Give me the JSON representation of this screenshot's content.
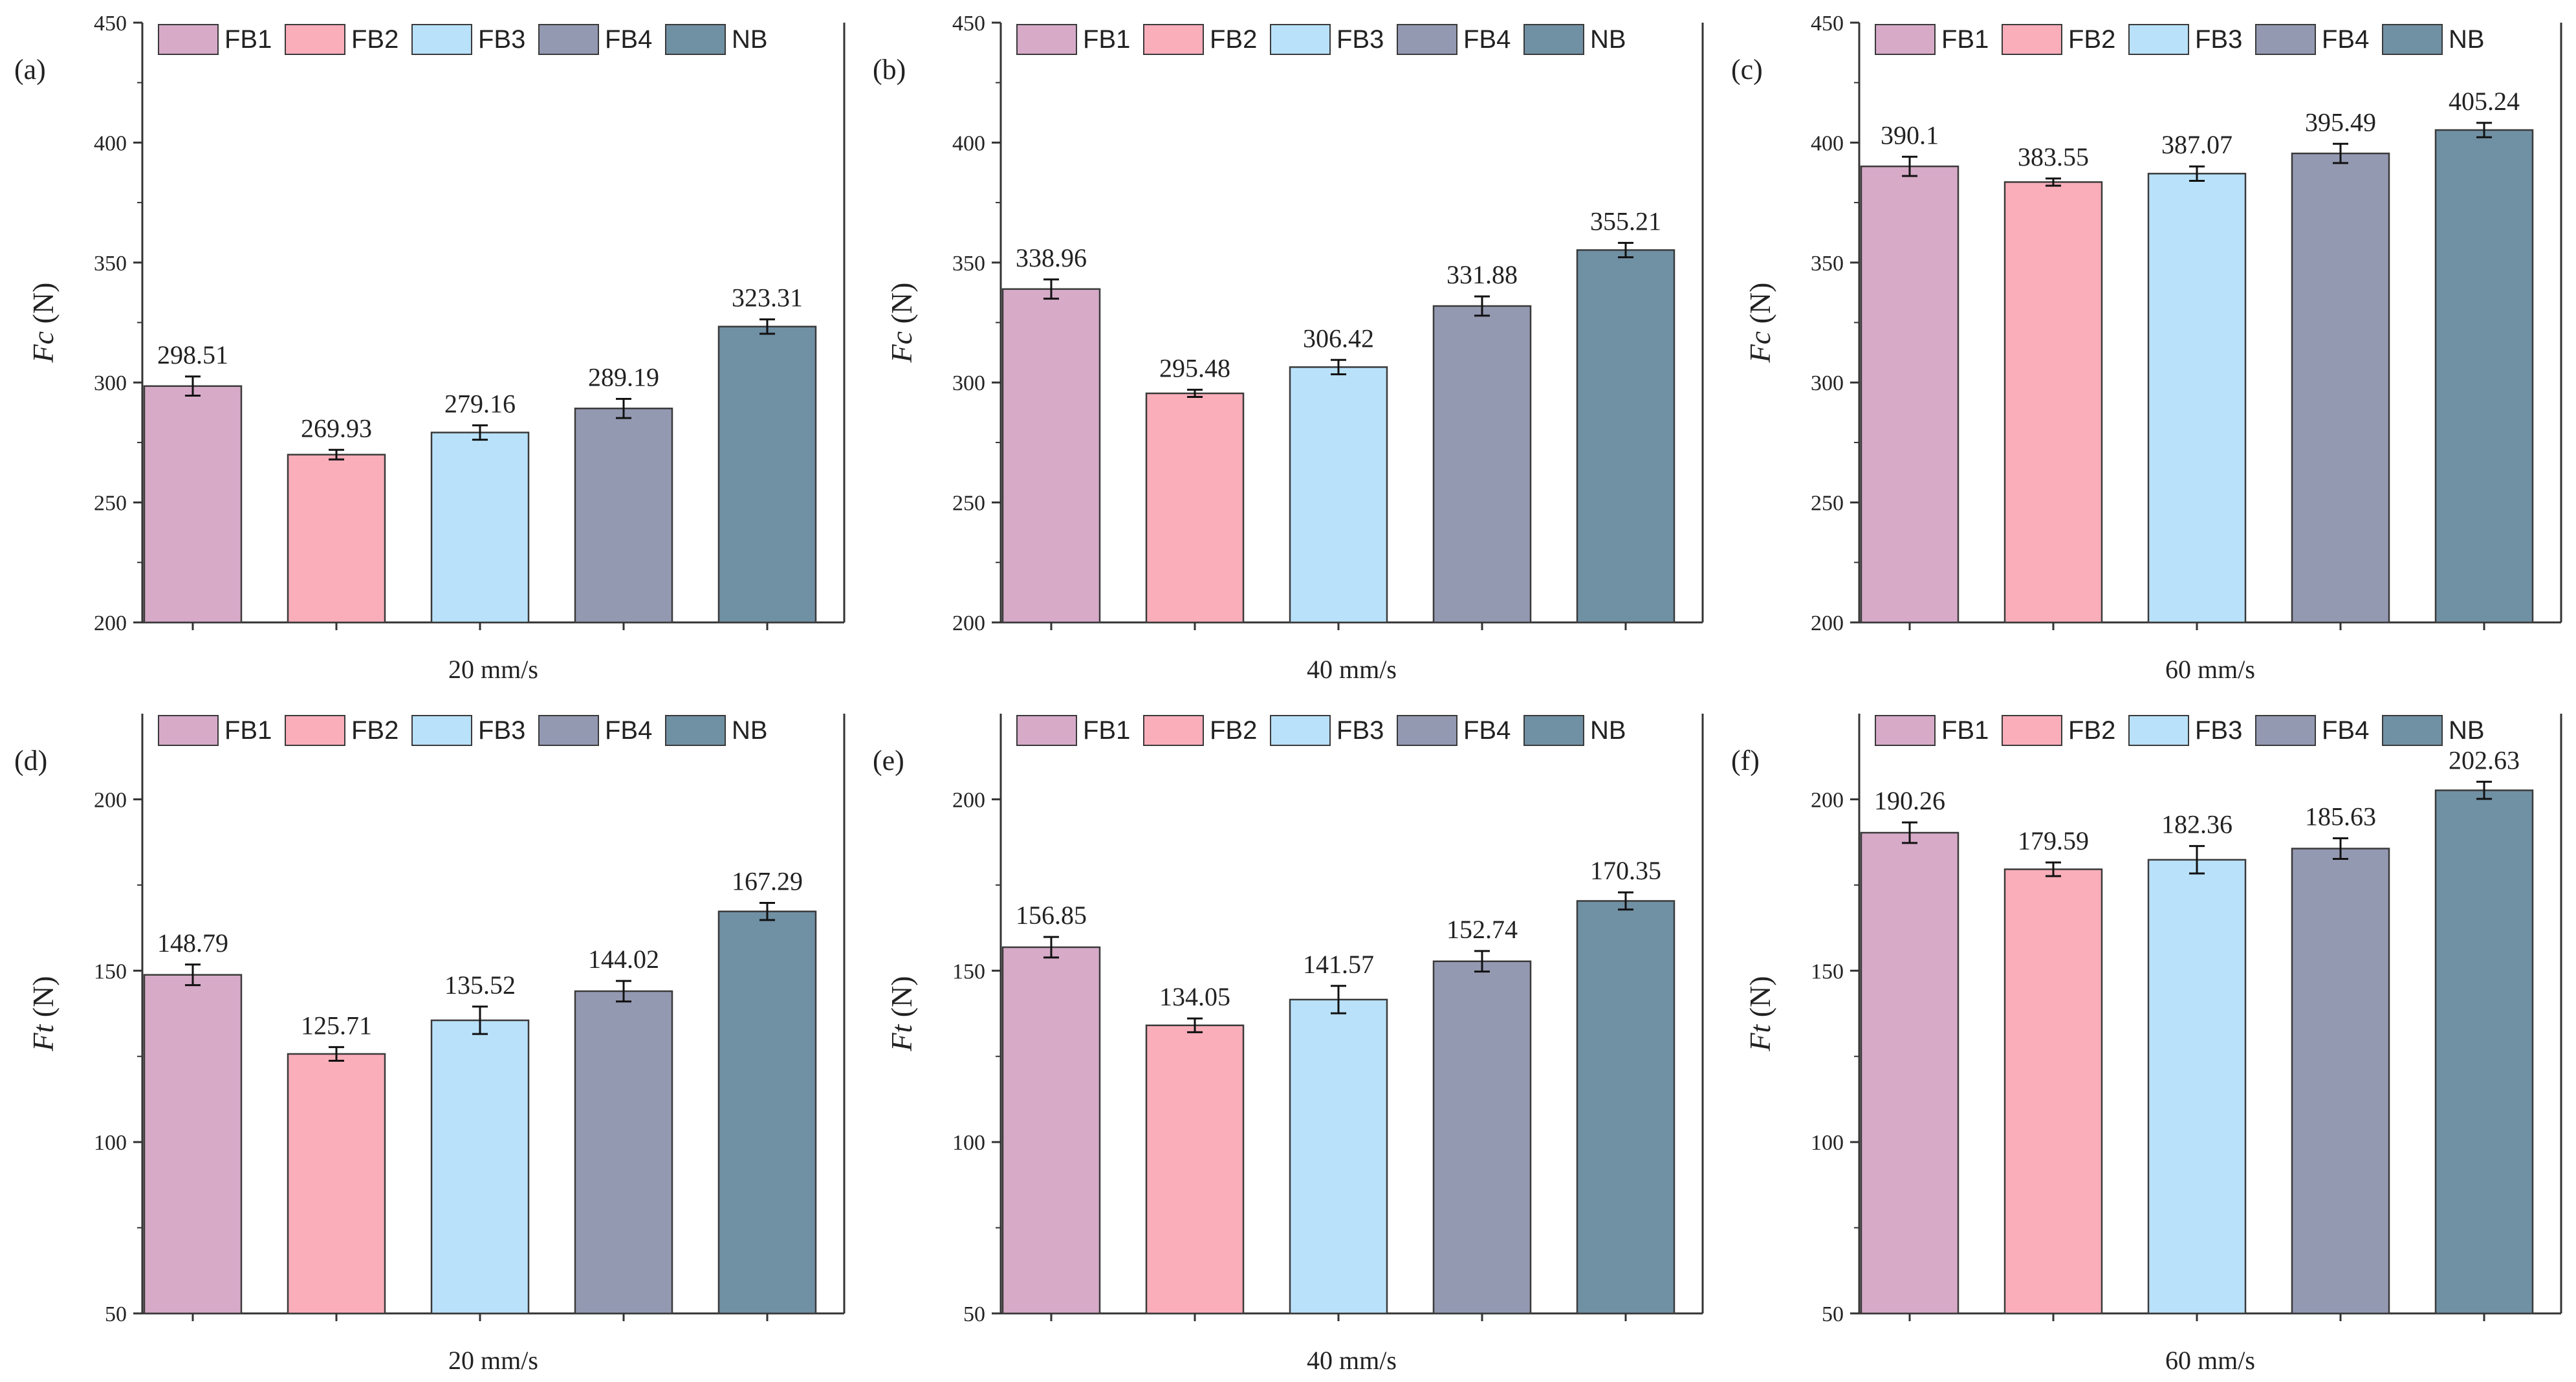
{
  "colors": {
    "FB1": "#d7aac8",
    "FB2": "#f9aeba",
    "FB3": "#b9e1fa",
    "FB4": "#9499b2",
    "NB": "#7090a4",
    "axis": "#333333",
    "bar_edge": "#3a3a3a"
  },
  "chart_data": [
    {
      "type": "bar",
      "panel": "(a)",
      "categories": [
        "FB1",
        "FB2",
        "FB3",
        "FB4",
        "NB"
      ],
      "values": [
        298.51,
        269.93,
        279.16,
        289.19,
        323.31
      ],
      "value_labels": [
        "298.51",
        "269.93",
        "279.16",
        "289.19",
        "323.31"
      ],
      "errors": [
        4,
        2,
        3,
        4,
        3
      ],
      "xlabel": "20 mm/s",
      "ylabel_main": "Fc",
      "ylabel_unit": " (N)",
      "ylim": [
        200,
        450
      ],
      "yticks": [
        200,
        250,
        300,
        350,
        400,
        450
      ],
      "legend": [
        "FB1",
        "FB2",
        "FB3",
        "FB4",
        "NB"
      ]
    },
    {
      "type": "bar",
      "panel": "(b)",
      "categories": [
        "FB1",
        "FB2",
        "FB3",
        "FB4",
        "NB"
      ],
      "values": [
        338.96,
        295.48,
        306.42,
        331.88,
        355.21
      ],
      "value_labels": [
        "338.96",
        "295.48",
        "306.42",
        "331.88",
        "355.21"
      ],
      "errors": [
        4,
        1.5,
        3,
        4,
        3
      ],
      "xlabel": "40 mm/s",
      "ylabel_main": "Fc",
      "ylabel_unit": " (N)",
      "ylim": [
        200,
        450
      ],
      "yticks": [
        200,
        250,
        300,
        350,
        400,
        450
      ],
      "legend": [
        "FB1",
        "FB2",
        "FB3",
        "FB4",
        "NB"
      ]
    },
    {
      "type": "bar",
      "panel": "(c)",
      "categories": [
        "FB1",
        "FB2",
        "FB3",
        "FB4",
        "NB"
      ],
      "values": [
        390.1,
        383.55,
        387.07,
        395.49,
        405.24
      ],
      "value_labels": [
        "390.1",
        "383.55",
        "387.07",
        "395.49",
        "405.24"
      ],
      "errors": [
        4,
        1.5,
        3,
        4,
        3
      ],
      "xlabel": "60 mm/s",
      "ylabel_main": "Fc",
      "ylabel_unit": " (N)",
      "ylim": [
        200,
        450
      ],
      "yticks": [
        200,
        250,
        300,
        350,
        400,
        450
      ],
      "legend": [
        "FB1",
        "FB2",
        "FB3",
        "FB4",
        "NB"
      ]
    },
    {
      "type": "bar",
      "panel": "(d)",
      "categories": [
        "FB1",
        "FB2",
        "FB3",
        "FB4",
        "NB"
      ],
      "values": [
        148.79,
        125.71,
        135.52,
        144.02,
        167.29
      ],
      "value_labels": [
        "148.79",
        "125.71",
        "135.52",
        "144.02",
        "167.29"
      ],
      "errors": [
        3,
        2,
        4,
        3,
        2.5
      ],
      "xlabel": "20 mm/s",
      "ylabel_main": "Ft",
      "ylabel_unit": " (N)",
      "ylim": [
        50,
        225
      ],
      "yticks": [
        50,
        100,
        150,
        200
      ],
      "legend": [
        "FB1",
        "FB2",
        "FB3",
        "FB4",
        "NB"
      ]
    },
    {
      "type": "bar",
      "panel": "(e)",
      "categories": [
        "FB1",
        "FB2",
        "FB3",
        "FB4",
        "NB"
      ],
      "values": [
        156.85,
        134.05,
        141.57,
        152.74,
        170.35
      ],
      "value_labels": [
        "156.85",
        "134.05",
        "141.57",
        "152.74",
        "170.35"
      ],
      "errors": [
        3,
        2,
        4,
        3,
        2.5
      ],
      "xlabel": "40 mm/s",
      "ylabel_main": "Ft",
      "ylabel_unit": " (N)",
      "ylim": [
        50,
        225
      ],
      "yticks": [
        50,
        100,
        150,
        200
      ],
      "legend": [
        "FB1",
        "FB2",
        "FB3",
        "FB4",
        "NB"
      ]
    },
    {
      "type": "bar",
      "panel": "(f)",
      "categories": [
        "FB1",
        "FB2",
        "FB3",
        "FB4",
        "NB"
      ],
      "values": [
        190.26,
        179.59,
        182.36,
        185.63,
        202.63
      ],
      "value_labels": [
        "190.26",
        "179.59",
        "182.36",
        "185.63",
        "202.63"
      ],
      "errors": [
        3,
        2,
        4,
        3,
        2.5
      ],
      "xlabel": "60 mm/s",
      "ylabel_main": "Ft",
      "ylabel_unit": " (N)",
      "ylim": [
        50,
        225
      ],
      "yticks": [
        50,
        100,
        150,
        200
      ],
      "legend": [
        "FB1",
        "FB2",
        "FB3",
        "FB4",
        "NB"
      ]
    }
  ]
}
